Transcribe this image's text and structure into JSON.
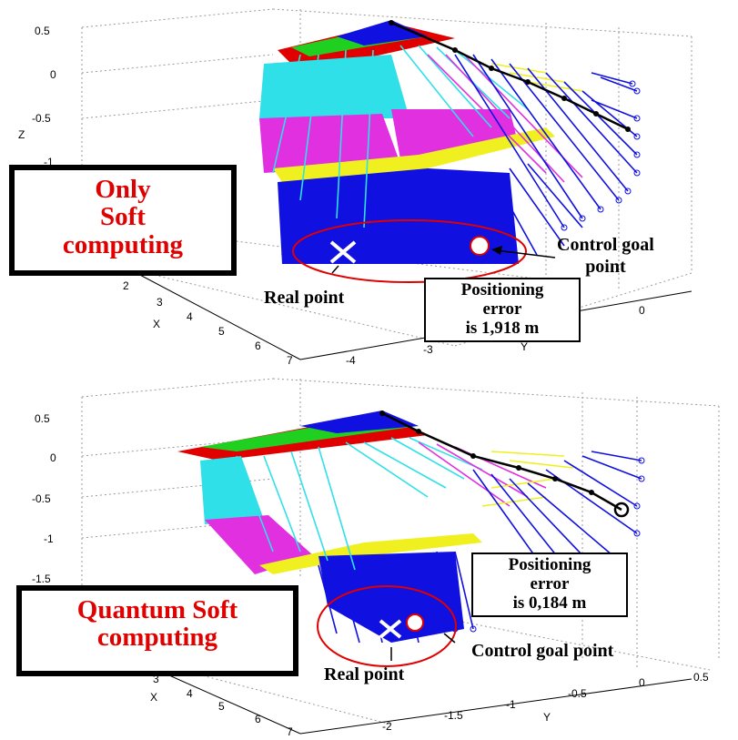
{
  "top": {
    "title_lines": [
      "Only",
      "Soft",
      "computing"
    ],
    "z_ticks": [
      "0.5",
      "0",
      "-0.5",
      "-1"
    ],
    "x_ticks": [
      "2",
      "3",
      "4",
      "5",
      "6",
      "7"
    ],
    "y_ticks": [
      "-4",
      "-3",
      "0"
    ],
    "axis_x": "X",
    "axis_y": "Y",
    "axis_z": "Z",
    "goal_label_lines": [
      "Control goal",
      "point"
    ],
    "real_label": "Real point",
    "error_lines": [
      "Positioning",
      "error",
      "is 1,918 m"
    ]
  },
  "bottom": {
    "title_lines": [
      "Quantum Soft",
      "computing"
    ],
    "z_ticks": [
      "0.5",
      "0",
      "-0.5",
      "-1",
      "-1.5"
    ],
    "x_ticks": [
      "3",
      "4",
      "5",
      "6",
      "7"
    ],
    "y_ticks": [
      "-2",
      "-1.5",
      "-1",
      "-0.5",
      "0",
      "0.5"
    ],
    "axis_x": "X",
    "axis_y": "Y",
    "goal_label": "Control goal point",
    "real_label": "Real point",
    "error_lines": [
      "Positioning",
      "error",
      "is 0,184 m"
    ]
  },
  "colors": {
    "blue": "#1010e0",
    "cyan": "#30e0e8",
    "magenta": "#e030e0",
    "yellow": "#f0f020",
    "red": "#e00000",
    "green": "#20d020"
  }
}
